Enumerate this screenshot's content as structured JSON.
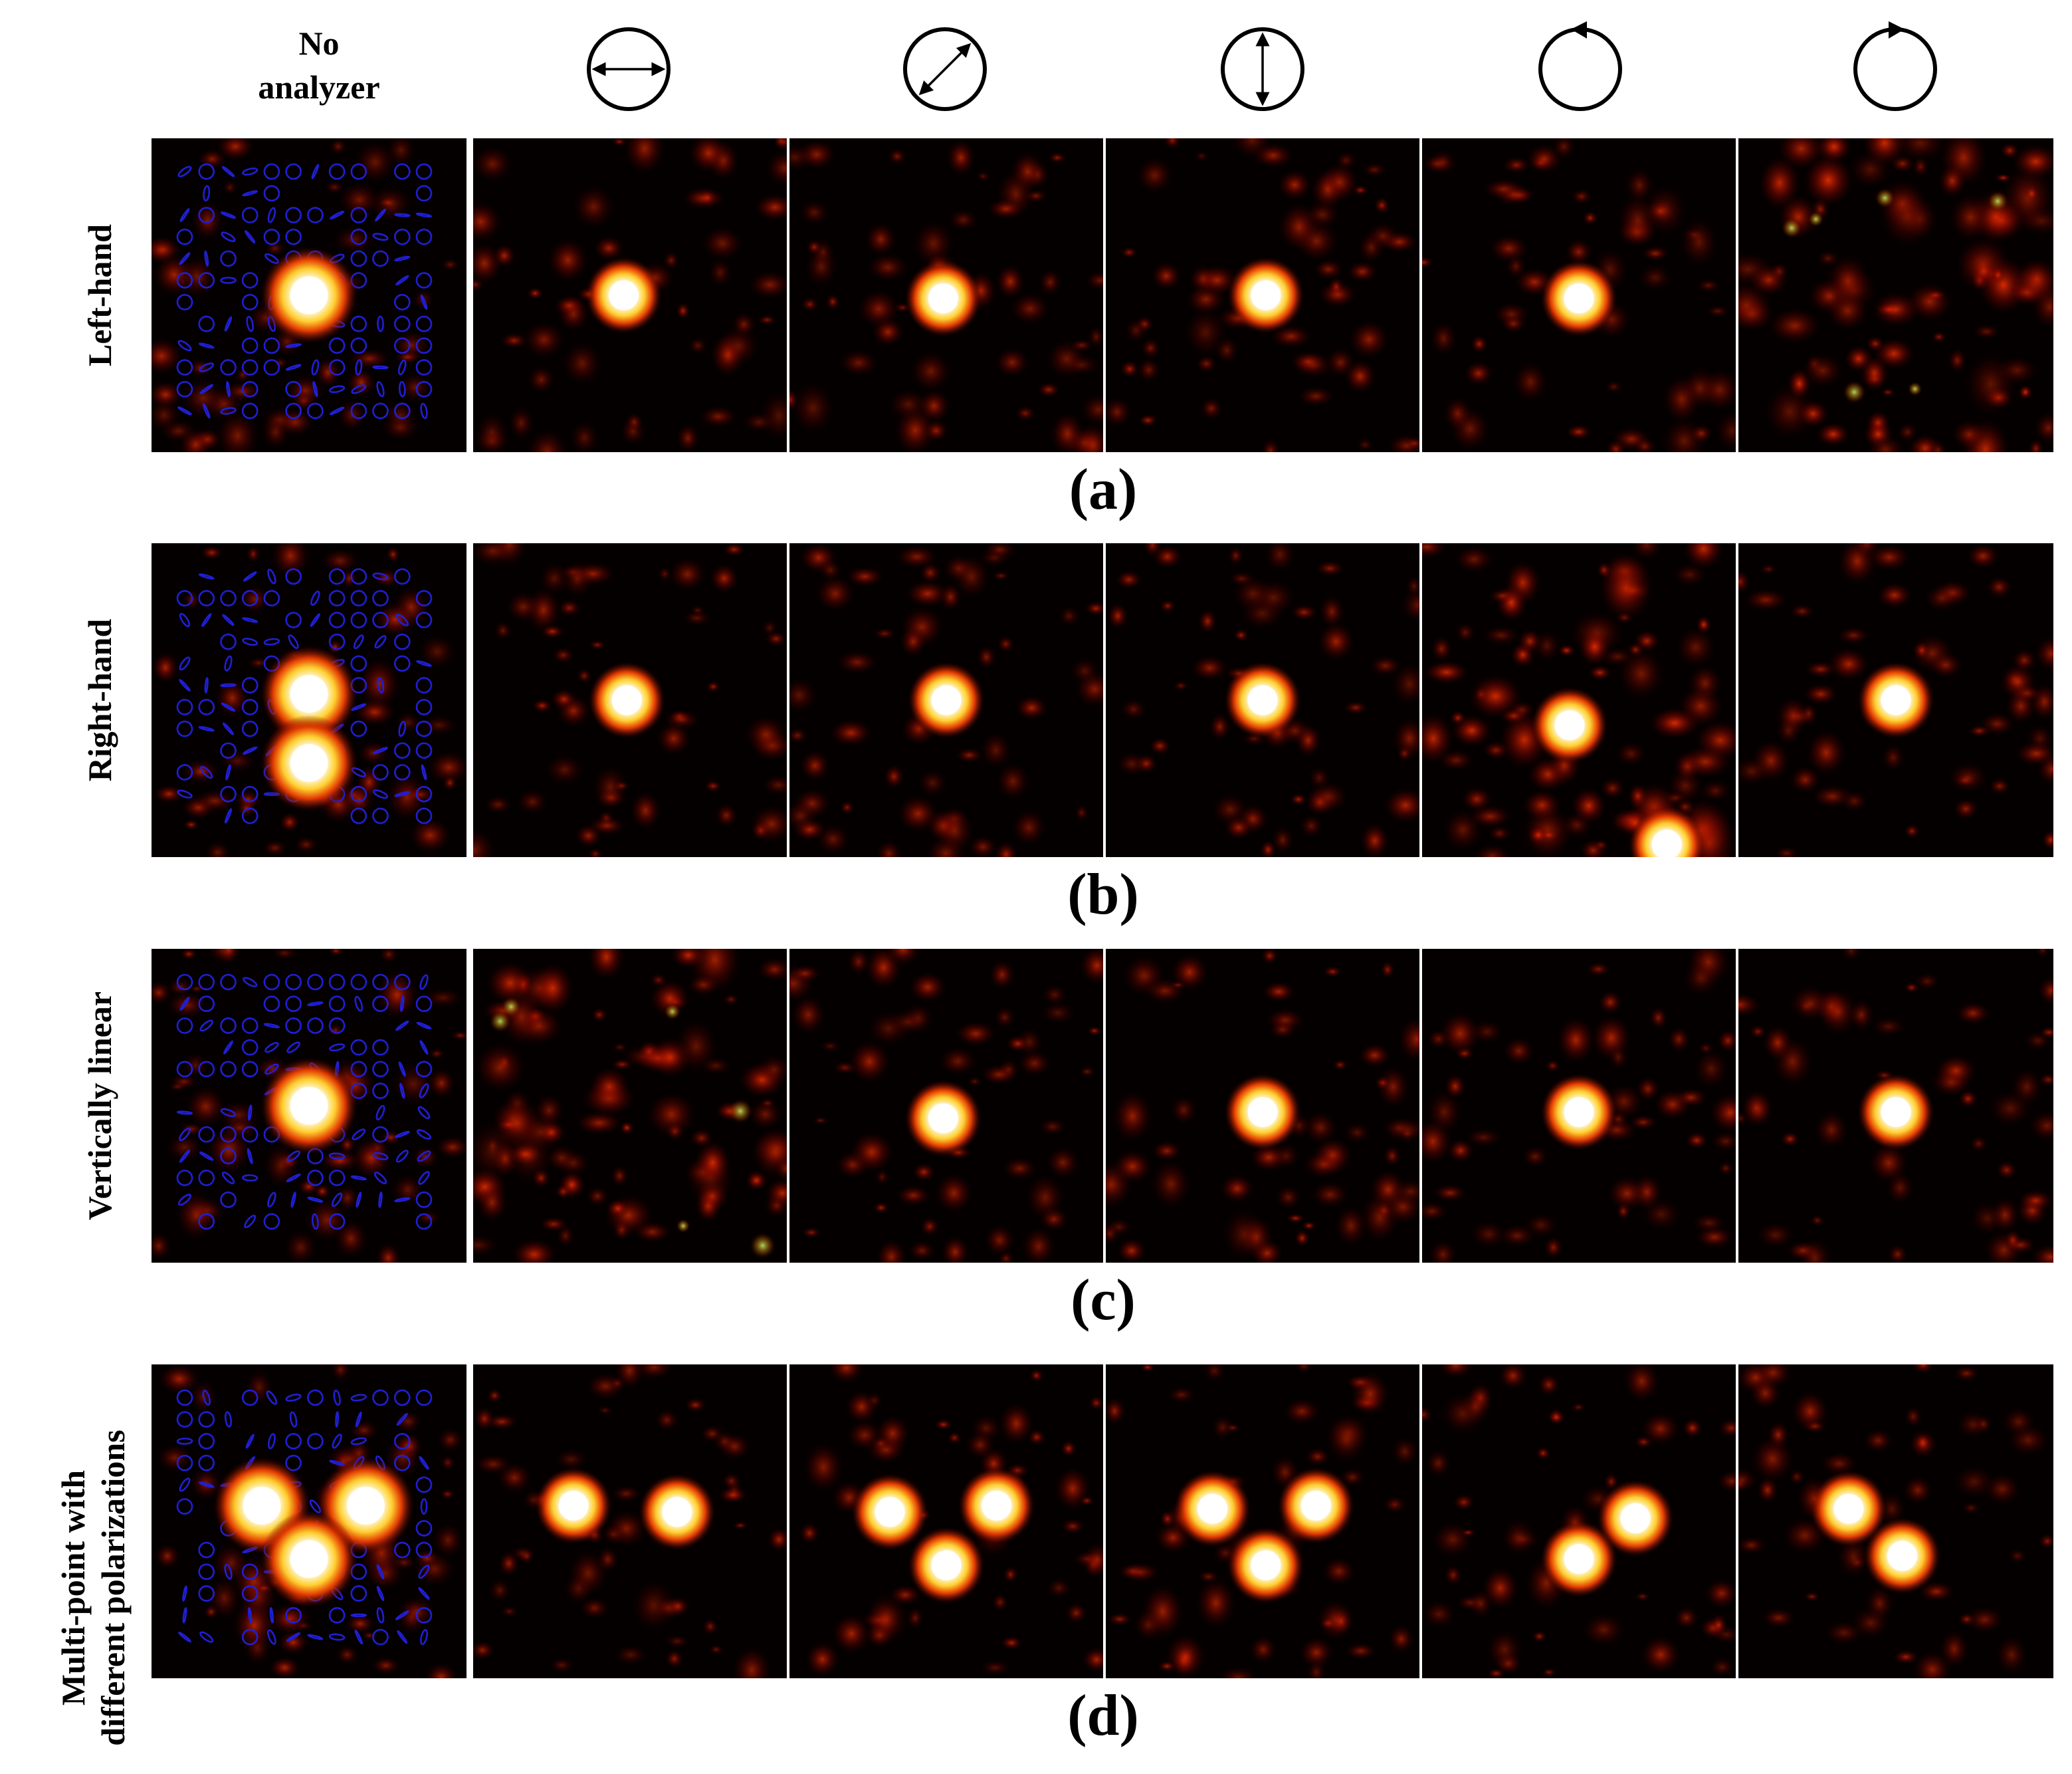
{
  "header": {
    "first_column_label": [
      "No",
      "analyzer"
    ],
    "analyzer_icons": [
      {
        "name": "horizontal-linear-analyzer-icon",
        "kind": "linear",
        "angle_deg": 0
      },
      {
        "name": "diagonal-linear-analyzer-icon",
        "kind": "linear",
        "angle_deg": 45
      },
      {
        "name": "vertical-linear-analyzer-icon",
        "kind": "linear",
        "angle_deg": 90
      },
      {
        "name": "left-circular-analyzer-icon",
        "kind": "circular",
        "handedness": "left"
      },
      {
        "name": "right-circular-analyzer-icon",
        "kind": "circular",
        "handedness": "right"
      }
    ]
  },
  "rows": [
    {
      "label": [
        "Left-hand"
      ],
      "panel_letter": "(a)",
      "spots": [
        [
          [
            0.5,
            0.5
          ]
        ],
        [
          [
            0.48,
            0.5
          ]
        ],
        [
          [
            0.49,
            0.51
          ]
        ],
        [
          [
            0.51,
            0.5
          ]
        ],
        [
          [
            0.5,
            0.51
          ]
        ],
        []
      ]
    },
    {
      "label": [
        "Right-hand"
      ],
      "panel_letter": "(b)",
      "spots": [
        [
          [
            0.5,
            0.48
          ],
          [
            0.5,
            0.7
          ]
        ],
        [
          [
            0.49,
            0.5
          ]
        ],
        [
          [
            0.5,
            0.5
          ]
        ],
        [
          [
            0.5,
            0.5
          ]
        ],
        [
          [
            0.47,
            0.58
          ],
          [
            0.78,
            0.96
          ]
        ],
        [
          [
            0.5,
            0.5
          ]
        ]
      ]
    },
    {
      "label": [
        "Vertically linear"
      ],
      "panel_letter": "(c)",
      "spots": [
        [
          [
            0.5,
            0.5
          ]
        ],
        [],
        [
          [
            0.49,
            0.54
          ]
        ],
        [
          [
            0.5,
            0.52
          ]
        ],
        [
          [
            0.5,
            0.52
          ]
        ],
        [
          [
            0.5,
            0.52
          ]
        ]
      ]
    },
    {
      "label": [
        "Multi-point  with",
        "different polarizations"
      ],
      "panel_letter": "(d)",
      "spots": [
        [
          [
            0.35,
            0.45
          ],
          [
            0.68,
            0.45
          ],
          [
            0.5,
            0.62
          ]
        ],
        [
          [
            0.32,
            0.45
          ],
          [
            0.65,
            0.47
          ]
        ],
        [
          [
            0.32,
            0.47
          ],
          [
            0.66,
            0.45
          ],
          [
            0.5,
            0.64
          ]
        ],
        [
          [
            0.34,
            0.46
          ],
          [
            0.67,
            0.45
          ],
          [
            0.51,
            0.64
          ]
        ],
        [
          [
            0.68,
            0.49
          ],
          [
            0.5,
            0.62
          ]
        ],
        [
          [
            0.35,
            0.46
          ],
          [
            0.52,
            0.61
          ]
        ]
      ]
    }
  ],
  "colors": {
    "colormap": "hot",
    "ellipse_overlay": "#1f1fd6",
    "background": "#000000"
  }
}
